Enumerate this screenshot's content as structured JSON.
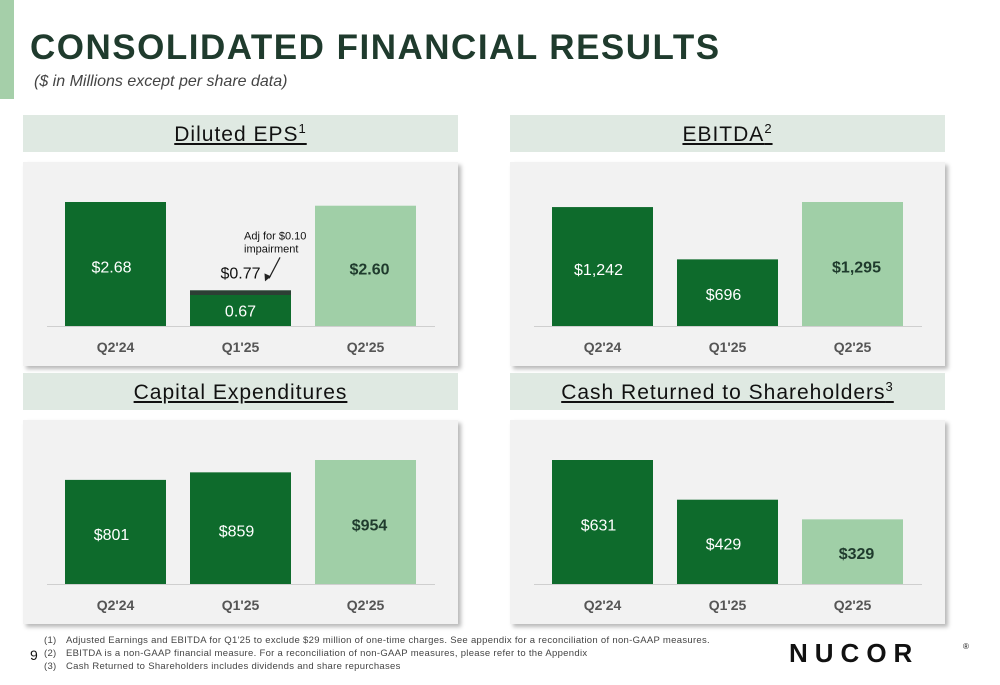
{
  "slide": {
    "title": "CONSOLIDATED FINANCIAL RESULTS",
    "subtitle": "($ in Millions except per share data)",
    "page_number": "9",
    "logo_text": "NUCOR",
    "footnotes": [
      {
        "num": "(1)",
        "text": "Adjusted Earnings and EBITDA for Q1'25 to exclude $29 million of one-time charges. See appendix for a reconciliation of non-GAAP measures."
      },
      {
        "num": "(2)",
        "text": "EBITDA is a non-GAAP financial measure. For a reconciliation of non-GAAP measures, please refer to the Appendix"
      },
      {
        "num": "(3)",
        "text": "Cash Returned to Shareholders includes dividends and share repurchases"
      }
    ]
  },
  "colors": {
    "dark_bar": "#0e6b2c",
    "light_bar": "#a0cfa7",
    "impairment": "#2d3f35",
    "panel": "#f2f2f2",
    "header": "#dfe9e2"
  },
  "chart_data": [
    {
      "type": "bar",
      "title": "Diluted EPS",
      "title_sup": "1",
      "categories": [
        "Q2'24",
        "Q1'25",
        "Q2'25"
      ],
      "values": [
        2.68,
        0.77,
        2.6
      ],
      "labels": [
        "$2.68",
        "$0.77",
        "$2.60"
      ],
      "stacked_note": {
        "category_index": 1,
        "base_value": 0.67,
        "base_label": "0.67",
        "adjustment_value": 0.1,
        "annotation": "Adj for $0.10 impairment"
      }
    },
    {
      "type": "bar",
      "title": "EBITDA",
      "title_sup": "2",
      "categories": [
        "Q2'24",
        "Q1'25",
        "Q2'25"
      ],
      "values": [
        1242,
        696,
        1295
      ],
      "labels": [
        "$1,242",
        "$696",
        "$1,295"
      ]
    },
    {
      "type": "bar",
      "title": "Capital Expenditures",
      "title_sup": "",
      "categories": [
        "Q2'24",
        "Q1'25",
        "Q2'25"
      ],
      "values": [
        801,
        859,
        954
      ],
      "labels": [
        "$801",
        "$859",
        "$954"
      ]
    },
    {
      "type": "bar",
      "title": "Cash Returned to Shareholders",
      "title_sup": "3",
      "categories": [
        "Q2'24",
        "Q1'25",
        "Q2'25"
      ],
      "values": [
        631,
        429,
        329
      ],
      "labels": [
        "$631",
        "$429",
        "$329"
      ]
    }
  ]
}
